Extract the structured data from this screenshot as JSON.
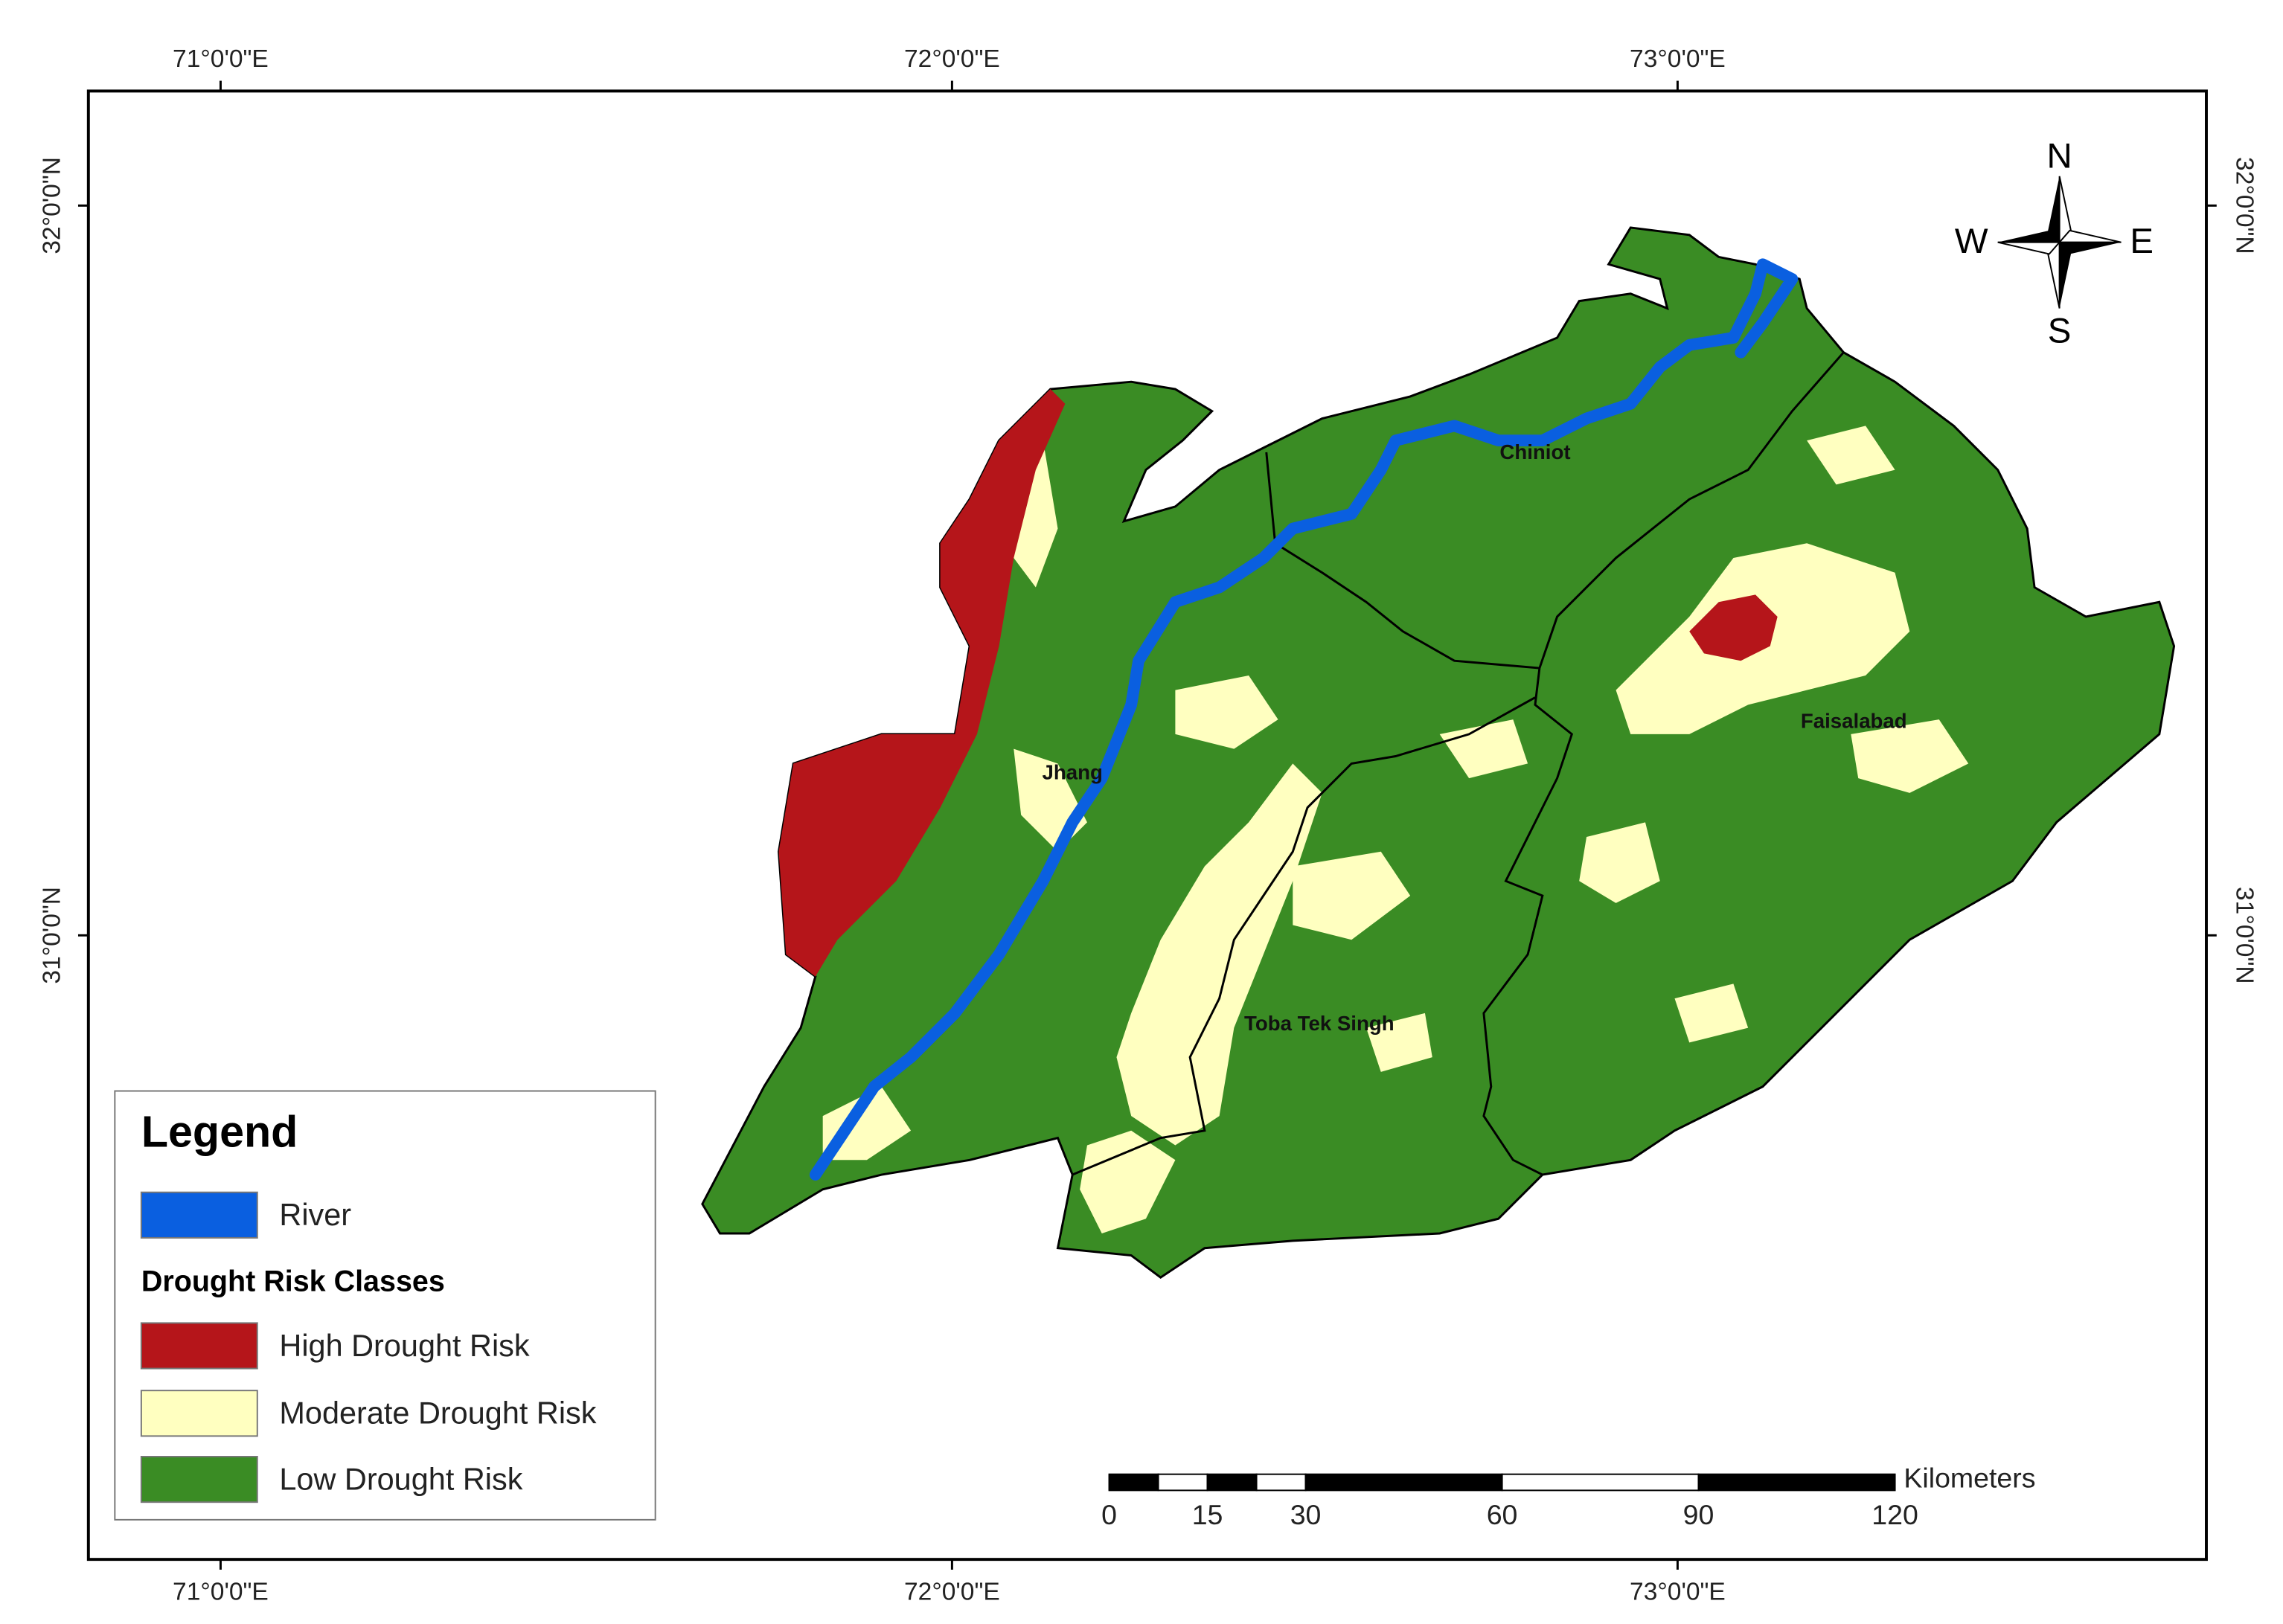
{
  "map": {
    "graticule": {
      "longitudes": [
        "71°0'0\"E",
        "72°0'0\"E",
        "73°0'0\"E"
      ],
      "latitudes": [
        "32°0'0\"N",
        "31°0'0\"N"
      ]
    },
    "compass": {
      "north": "N",
      "east": "E",
      "south": "S",
      "west": "W"
    },
    "places": [
      "Chiniot",
      "Jhang",
      "Faisalabad",
      "Toba Tek Singh"
    ],
    "legend": {
      "title": "Legend",
      "river": "River",
      "classes_heading": "Drought Risk Classes",
      "classes": [
        "High Drought Risk",
        "Moderate Drought Risk",
        "Low Drought Risk"
      ]
    },
    "scale_bar": {
      "unit": "Kilometers",
      "ticks": [
        0,
        15,
        30,
        60,
        90,
        120
      ]
    }
  }
}
